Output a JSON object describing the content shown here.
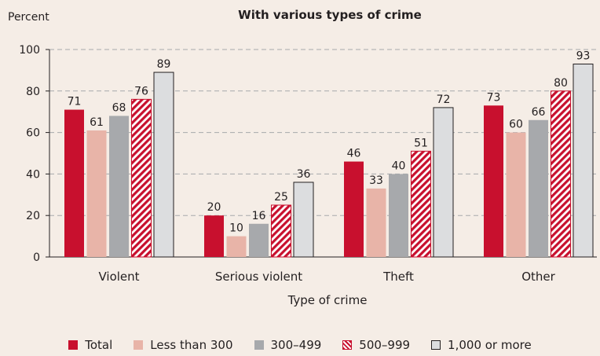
{
  "chart_data": {
    "type": "bar",
    "title": "With various types of crime",
    "ylabel": "Percent",
    "xlabel": "Type of crime",
    "ylim": [
      0,
      100
    ],
    "yticks": [
      0,
      20,
      40,
      60,
      80,
      100
    ],
    "grid": "dashed horizontal",
    "legend_position": "bottom",
    "categories": [
      "Violent",
      "Serious violent",
      "Theft",
      "Other"
    ],
    "series": [
      {
        "name": "Total",
        "values": [
          71,
          20,
          46,
          73
        ],
        "color": "#c8102e",
        "pattern": "solid"
      },
      {
        "name": "Less than 300",
        "values": [
          61,
          10,
          33,
          60
        ],
        "color": "#e8b4a8",
        "pattern": "solid"
      },
      {
        "name": "300–499",
        "values": [
          68,
          16,
          40,
          66
        ],
        "color": "#a7a9ac",
        "pattern": "solid"
      },
      {
        "name": "500–999",
        "values": [
          76,
          25,
          51,
          80
        ],
        "color": "#c8102e",
        "pattern": "hatched"
      },
      {
        "name": "1,000 or more",
        "values": [
          89,
          36,
          72,
          93
        ],
        "color": "#dcdddf",
        "pattern": "outlined"
      }
    ]
  }
}
